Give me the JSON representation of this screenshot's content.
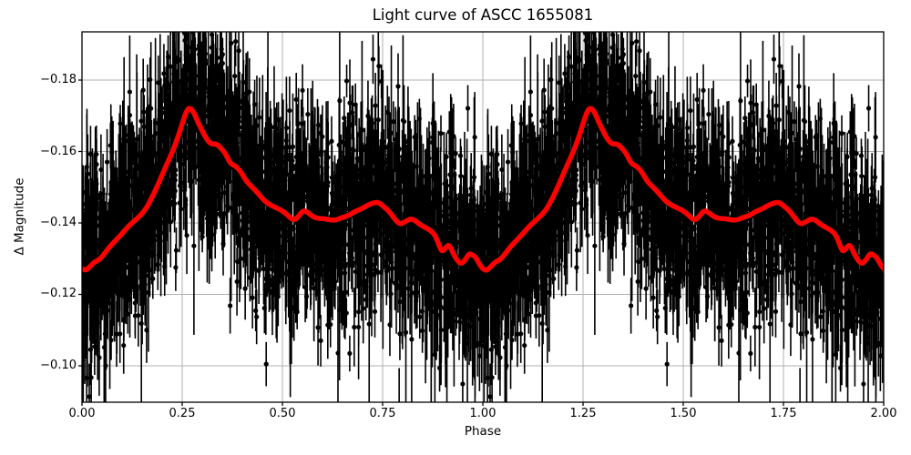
{
  "chart_data": {
    "type": "scatter",
    "subtype": "phased-light-curve-with-errorbars-and-smoothed-line",
    "title": "Light curve of ASCC 1655081",
    "xlabel": "Phase",
    "ylabel": "Δ Magnitude",
    "grid": true,
    "legend": "none",
    "y_axis_inverted": true,
    "xlim": [
      0.0,
      2.0
    ],
    "ylim_top": -0.1935,
    "ylim_bottom": -0.0898,
    "x_ticks": [
      0.0,
      0.25,
      0.5,
      0.75,
      1.0,
      1.25,
      1.5,
      1.75,
      2.0
    ],
    "x_tick_labels": [
      "0.00",
      "0.25",
      "0.50",
      "0.75",
      "1.00",
      "1.25",
      "1.50",
      "1.75",
      "2.00"
    ],
    "y_ticks": [
      -0.18,
      -0.16,
      -0.14,
      -0.12,
      -0.1
    ],
    "y_tick_labels": [
      "−0.18",
      "−0.16",
      "−0.14",
      "−0.12",
      "−0.10"
    ],
    "colors": {
      "background": "#ffffff",
      "text": "#000000",
      "frame": "#000000",
      "grid": "#b0b0b0",
      "points": "#000000",
      "smoothed_line": "#ff0000"
    },
    "series": [
      {
        "name": "observations",
        "style": "errorbar-scatter",
        "color": "#000000",
        "cycles_plotted": 2,
        "points_per_cycle_estimate": 2400,
        "scatter_sigma_mag_estimate": 0.013,
        "errorbar_halflength_mag_range": [
          0.004,
          0.032
        ],
        "seed": 7
      },
      {
        "name": "smoothed-light-curve",
        "style": "line",
        "color": "#ff0000",
        "cycles_plotted": 2,
        "peak_phase": 0.268,
        "peak_mag": -0.1723,
        "min_phase": 0.007,
        "min_mag": -0.1266,
        "base_cycle": [
          [
            0.0,
            -0.1272
          ],
          [
            0.008,
            -0.1266
          ],
          [
            0.018,
            -0.1275
          ],
          [
            0.03,
            -0.129
          ],
          [
            0.042,
            -0.1296
          ],
          [
            0.052,
            -0.1308
          ],
          [
            0.07,
            -0.1335
          ],
          [
            0.085,
            -0.1352
          ],
          [
            0.1,
            -0.137
          ],
          [
            0.115,
            -0.139
          ],
          [
            0.13,
            -0.1405
          ],
          [
            0.145,
            -0.142
          ],
          [
            0.16,
            -0.144
          ],
          [
            0.175,
            -0.1472
          ],
          [
            0.19,
            -0.1508
          ],
          [
            0.205,
            -0.1548
          ],
          [
            0.22,
            -0.1585
          ],
          [
            0.235,
            -0.1625
          ],
          [
            0.25,
            -0.1678
          ],
          [
            0.26,
            -0.1712
          ],
          [
            0.268,
            -0.1723
          ],
          [
            0.278,
            -0.1712
          ],
          [
            0.288,
            -0.1685
          ],
          [
            0.298,
            -0.1662
          ],
          [
            0.31,
            -0.1636
          ],
          [
            0.322,
            -0.162
          ],
          [
            0.334,
            -0.1622
          ],
          [
            0.345,
            -0.1612
          ],
          [
            0.358,
            -0.1594
          ],
          [
            0.37,
            -0.1566
          ],
          [
            0.382,
            -0.156
          ],
          [
            0.395,
            -0.1546
          ],
          [
            0.41,
            -0.1516
          ],
          [
            0.425,
            -0.15
          ],
          [
            0.44,
            -0.1482
          ],
          [
            0.455,
            -0.1462
          ],
          [
            0.47,
            -0.145
          ],
          [
            0.485,
            -0.1442
          ],
          [
            0.5,
            -0.1434
          ],
          [
            0.515,
            -0.142
          ],
          [
            0.528,
            -0.1406
          ],
          [
            0.54,
            -0.1418
          ],
          [
            0.552,
            -0.1436
          ],
          [
            0.565,
            -0.1428
          ],
          [
            0.578,
            -0.1416
          ],
          [
            0.592,
            -0.1412
          ],
          [
            0.605,
            -0.1412
          ],
          [
            0.62,
            -0.1408
          ],
          [
            0.635,
            -0.1408
          ],
          [
            0.65,
            -0.1416
          ],
          [
            0.665,
            -0.142
          ],
          [
            0.68,
            -0.1432
          ],
          [
            0.695,
            -0.1438
          ],
          [
            0.71,
            -0.1448
          ],
          [
            0.725,
            -0.1456
          ],
          [
            0.74,
            -0.1458
          ],
          [
            0.752,
            -0.1446
          ],
          [
            0.765,
            -0.1434
          ],
          [
            0.778,
            -0.1414
          ],
          [
            0.792,
            -0.1396
          ],
          [
            0.805,
            -0.1402
          ],
          [
            0.818,
            -0.1412
          ],
          [
            0.83,
            -0.1408
          ],
          [
            0.842,
            -0.1396
          ],
          [
            0.855,
            -0.1388
          ],
          [
            0.868,
            -0.138
          ],
          [
            0.88,
            -0.1368
          ],
          [
            0.89,
            -0.134
          ],
          [
            0.898,
            -0.1318
          ],
          [
            0.908,
            -0.1332
          ],
          [
            0.916,
            -0.134
          ],
          [
            0.928,
            -0.131
          ],
          [
            0.938,
            -0.1292
          ],
          [
            0.947,
            -0.1285
          ],
          [
            0.957,
            -0.1298
          ],
          [
            0.966,
            -0.1315
          ],
          [
            0.975,
            -0.131
          ],
          [
            0.983,
            -0.1303
          ],
          [
            0.991,
            -0.1285
          ],
          [
            1.0,
            -0.1272
          ]
        ]
      }
    ]
  }
}
